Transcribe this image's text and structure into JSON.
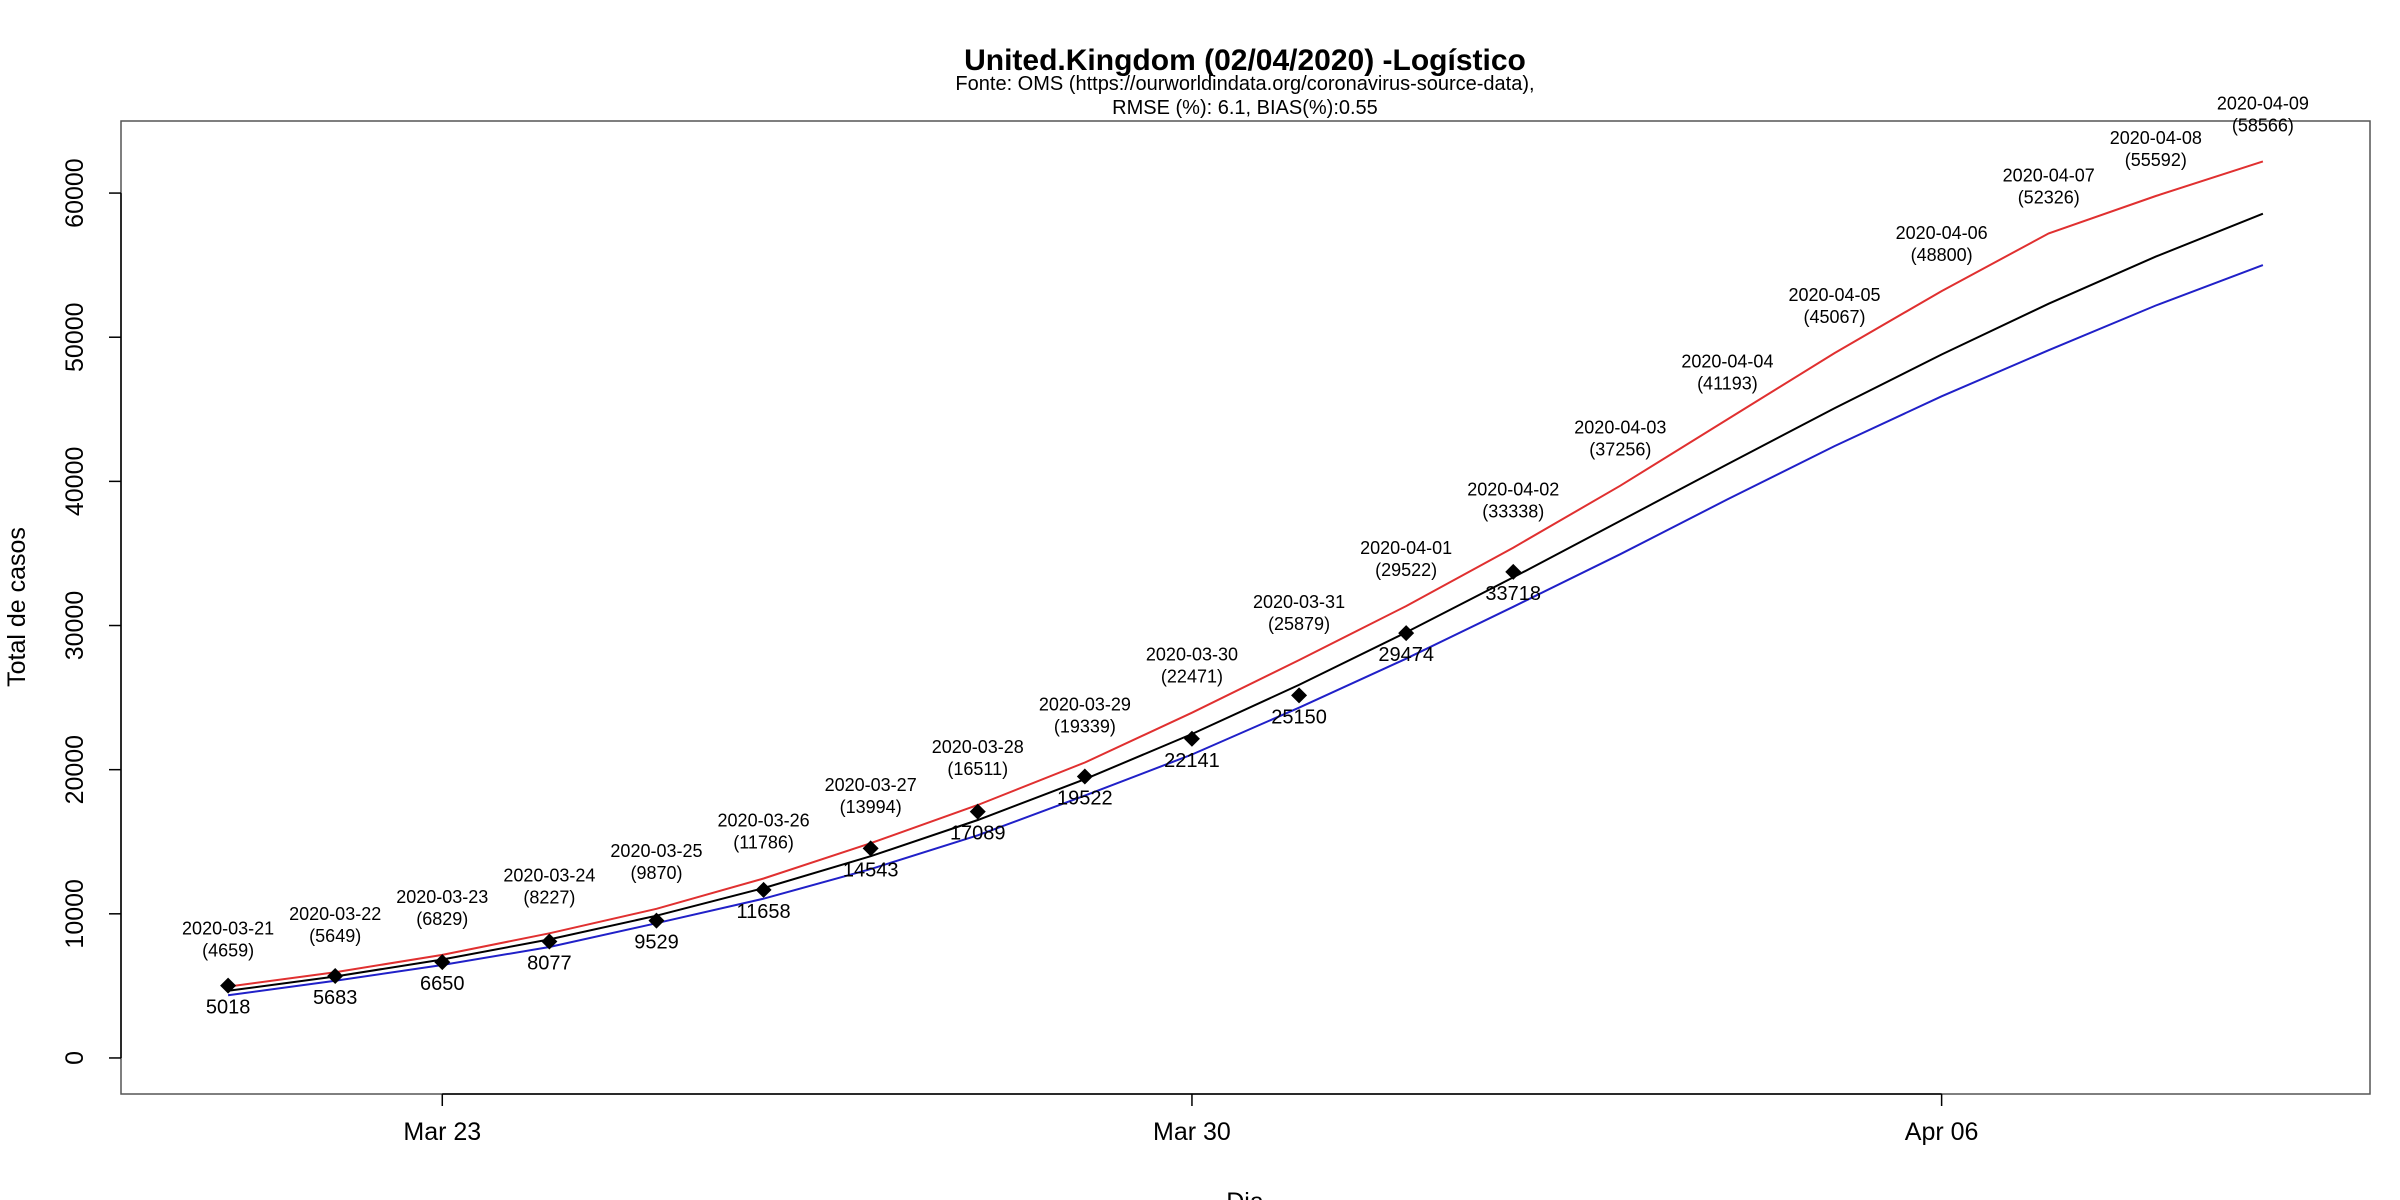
{
  "chart_data": {
    "type": "line",
    "title": "United.Kingdom (02/04/2020) -Logístico",
    "subtitle_lines": [
      "Fonte: OMS (https://ourworldindata.org/coronavirus-source-data),",
      "RMSE (%): 6.1, BIAS(%):0.55"
    ],
    "xlabel": "Dia",
    "ylabel": "Total de casos",
    "x_range": [
      "2020-03-20",
      "2020-04-10"
    ],
    "ylim": [
      -2500,
      65000
    ],
    "y_ticks": [
      0,
      10000,
      20000,
      30000,
      40000,
      50000,
      60000
    ],
    "x_ticks": [
      {
        "date": "2020-03-23",
        "label": "Mar 23"
      },
      {
        "date": "2020-03-30",
        "label": "Mar 30"
      },
      {
        "date": "2020-04-06",
        "label": "Apr 06"
      }
    ],
    "grid": false,
    "colors": {
      "upper": "#e03030",
      "fit": "#000000",
      "lower": "#2020c8",
      "frame": "#555555"
    },
    "dates": [
      "2020-03-21",
      "2020-03-22",
      "2020-03-23",
      "2020-03-24",
      "2020-03-25",
      "2020-03-26",
      "2020-03-27",
      "2020-03-28",
      "2020-03-29",
      "2020-03-30",
      "2020-03-31",
      "2020-04-01",
      "2020-04-02",
      "2020-04-03",
      "2020-04-04",
      "2020-04-05",
      "2020-04-06",
      "2020-04-07",
      "2020-04-08",
      "2020-04-09"
    ],
    "series": [
      {
        "key": "upper",
        "values": [
          4950,
          5950,
          7150,
          8650,
          10350,
          12450,
          14900,
          17550,
          20500,
          23950,
          27600,
          31350,
          35400,
          39700,
          44300,
          48900,
          53200,
          57200,
          59800,
          62200
        ]
      },
      {
        "key": "fit",
        "values": [
          4659,
          5649,
          6829,
          8227,
          9870,
          11786,
          13994,
          16511,
          19339,
          22471,
          25879,
          29522,
          33338,
          37256,
          41193,
          45067,
          48800,
          52326,
          55592,
          58566
        ]
      },
      {
        "key": "lower",
        "values": [
          4350,
          5350,
          6450,
          7700,
          9350,
          11050,
          13100,
          15450,
          18200,
          21050,
          24300,
          27700,
          31300,
          34950,
          38750,
          42450,
          45900,
          49100,
          52200,
          55000
        ]
      }
    ],
    "observed": {
      "dates": [
        "2020-03-21",
        "2020-03-22",
        "2020-03-23",
        "2020-03-24",
        "2020-03-25",
        "2020-03-26",
        "2020-03-27",
        "2020-03-28",
        "2020-03-29",
        "2020-03-30",
        "2020-03-31",
        "2020-04-01",
        "2020-04-02"
      ],
      "values": [
        5018,
        5683,
        6650,
        8077,
        9529,
        11658,
        14543,
        17089,
        19522,
        22141,
        25150,
        29474,
        33718
      ]
    },
    "forecast_labels": [
      {
        "date": "2020-03-21",
        "value": "(4659)"
      },
      {
        "date": "2020-03-22",
        "value": "(5649)"
      },
      {
        "date": "2020-03-23",
        "value": "(6829)"
      },
      {
        "date": "2020-03-24",
        "value": "(8227)"
      },
      {
        "date": "2020-03-25",
        "value": "(9870)"
      },
      {
        "date": "2020-03-26",
        "value": "(11786)"
      },
      {
        "date": "2020-03-27",
        "value": "(13994)"
      },
      {
        "date": "2020-03-28",
        "value": "(16511)"
      },
      {
        "date": "2020-03-29",
        "value": "(19339)"
      },
      {
        "date": "2020-03-30",
        "value": "(22471)"
      },
      {
        "date": "2020-03-31",
        "value": "(25879)"
      },
      {
        "date": "2020-04-01",
        "value": "(29522)"
      },
      {
        "date": "2020-04-02",
        "value": "(33338)"
      },
      {
        "date": "2020-04-03",
        "value": "(37256)"
      },
      {
        "date": "2020-04-04",
        "value": "(41193)"
      },
      {
        "date": "2020-04-05",
        "value": "(45067)"
      },
      {
        "date": "2020-04-06",
        "value": "(48800)"
      },
      {
        "date": "2020-04-07",
        "value": "(52326)"
      },
      {
        "date": "2020-04-08",
        "value": "(55592)"
      },
      {
        "date": "2020-04-09",
        "value": "(58566)"
      }
    ]
  }
}
